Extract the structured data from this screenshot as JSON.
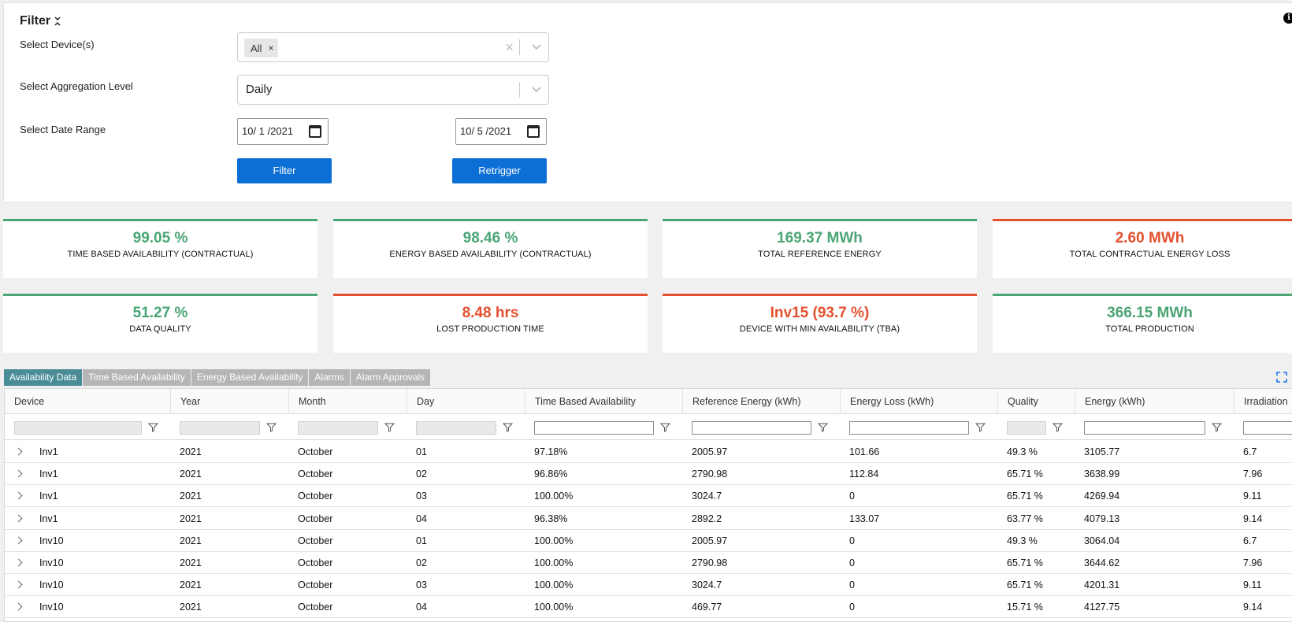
{
  "filter": {
    "title": "Filter",
    "devices_label": "Select Device(s)",
    "devices_chip": "All",
    "aggregation_label": "Select Aggregation Level",
    "aggregation_value": "Daily",
    "date_label": "Select Date Range",
    "date_from": "10/ 1 /2021",
    "date_to": "10/ 5 /2021",
    "filter_button": "Filter",
    "retrigger_button": "Retrigger"
  },
  "cards": [
    {
      "value": "99.05 %",
      "label": "TIME BASED AVAILABILITY (CONTRACTUAL)",
      "status": "green"
    },
    {
      "value": "98.46 %",
      "label": "ENERGY BASED AVAILABILITY (CONTRACTUAL)",
      "status": "green"
    },
    {
      "value": "169.37 MWh",
      "label": "TOTAL REFERENCE ENERGY",
      "status": "green"
    },
    {
      "value": "2.60 MWh",
      "label": "TOTAL CONTRACTUAL ENERGY LOSS",
      "status": "red"
    },
    {
      "value": "51.27 %",
      "label": "DATA QUALITY",
      "status": "green"
    },
    {
      "value": "8.48 hrs",
      "label": "LOST PRODUCTION TIME",
      "status": "red"
    },
    {
      "value": "Inv15 (93.7 %)",
      "label": "DEVICE WITH MIN AVAILABILITY (TBA)",
      "status": "red"
    },
    {
      "value": "366.15 MWh",
      "label": "TOTAL PRODUCTION",
      "status": "green"
    }
  ],
  "colors": {
    "green": "#4aa574",
    "red": "#e4502e",
    "primary": "#0b6fd6",
    "active_tab": "#4a8c96"
  },
  "tabs": [
    {
      "label": "Availability Data",
      "active": true
    },
    {
      "label": "Time Based Availability",
      "active": false
    },
    {
      "label": "Energy Based Availability",
      "active": false
    },
    {
      "label": "Alarms",
      "active": false
    },
    {
      "label": "Alarm Approvals",
      "active": false
    }
  ],
  "table": {
    "columns": [
      "Device",
      "Year",
      "Month",
      "Day",
      "Time Based Availability",
      "Reference Energy (kWh)",
      "Energy Loss (kWh)",
      "Quality",
      "Energy (kWh)",
      "Irradiation"
    ],
    "rows": [
      [
        "Inv1",
        "2021",
        "October",
        "01",
        "97.18%",
        "2005.97",
        "101.66",
        "49.3 %",
        "3105.77",
        "6.7"
      ],
      [
        "Inv1",
        "2021",
        "October",
        "02",
        "96.86%",
        "2790.98",
        "112.84",
        "65.71 %",
        "3638.99",
        "7.96"
      ],
      [
        "Inv1",
        "2021",
        "October",
        "03",
        "100.00%",
        "3024.7",
        "0",
        "65.71 %",
        "4269.94",
        "9.11"
      ],
      [
        "Inv1",
        "2021",
        "October",
        "04",
        "96.38%",
        "2892.2",
        "133.07",
        "63.77 %",
        "4079.13",
        "9.14"
      ],
      [
        "Inv10",
        "2021",
        "October",
        "01",
        "100.00%",
        "2005.97",
        "0",
        "49.3 %",
        "3064.04",
        "6.7"
      ],
      [
        "Inv10",
        "2021",
        "October",
        "02",
        "100.00%",
        "2790.98",
        "0",
        "65.71 %",
        "3644.62",
        "7.96"
      ],
      [
        "Inv10",
        "2021",
        "October",
        "03",
        "100.00%",
        "3024.7",
        "0",
        "65.71 %",
        "4201.31",
        "9.11"
      ],
      [
        "Inv10",
        "2021",
        "October",
        "04",
        "100.00%",
        "469.77",
        "0",
        "15.71 %",
        "4127.75",
        "9.14"
      ]
    ]
  }
}
